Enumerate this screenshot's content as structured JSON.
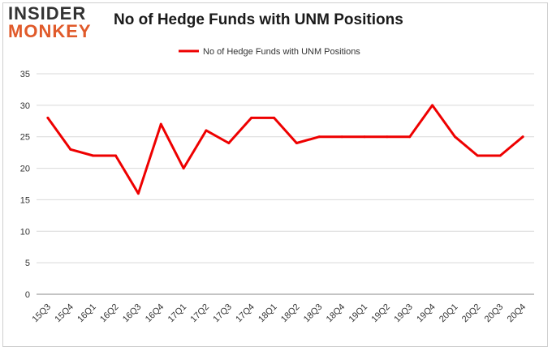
{
  "logo": {
    "top": "INSIDER",
    "bottom": "MONKEY"
  },
  "chart_data": {
    "type": "line",
    "title": "No of Hedge Funds with UNM Positions",
    "xlabel": "",
    "ylabel": "",
    "categories": [
      "15Q3",
      "15Q4",
      "16Q1",
      "16Q2",
      "16Q3",
      "16Q4",
      "17Q1",
      "17Q2",
      "17Q3",
      "17Q4",
      "18Q1",
      "18Q2",
      "18Q3",
      "18Q4",
      "19Q1",
      "19Q2",
      "19Q3",
      "19Q4",
      "20Q1",
      "20Q2",
      "20Q3",
      "20Q4"
    ],
    "series": [
      {
        "name": "No of Hedge Funds with UNM  Positions",
        "values": [
          28,
          23,
          22,
          22,
          16,
          27,
          20,
          26,
          24,
          28,
          28,
          24,
          25,
          25,
          25,
          25,
          25,
          30,
          25,
          22,
          22,
          25
        ],
        "color": "#ee0000"
      }
    ],
    "ylim": [
      0,
      35
    ],
    "yticks": [
      0,
      5,
      10,
      15,
      20,
      25,
      30,
      35
    ],
    "grid": true,
    "legend_position": "top-center"
  }
}
